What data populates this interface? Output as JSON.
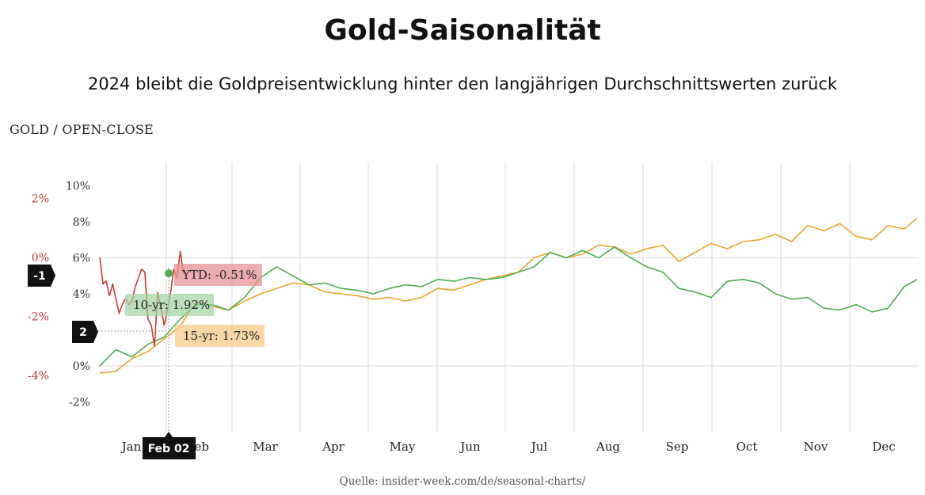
{
  "header": {
    "title": "Gold-Saisonalität",
    "subtitle": "2024 bleibt die Goldpreisentwicklung hinter den langjährigen Durchschnittswerten zurück",
    "chart_label": "GOLD / OPEN-CLOSE"
  },
  "footer": {
    "source": "Quelle: insider-week.com/de/seasonal-charts/"
  },
  "colors": {
    "ytd": "#d03a2f",
    "ten_yr": "#4caf50",
    "fifteen_yr": "#f0a32a",
    "grid": "#dddddd"
  },
  "crosshair": {
    "date_label": "Feb 02",
    "left_axis_marker": "-1",
    "right_axis_marker": "2"
  },
  "chart_data": {
    "type": "line",
    "months": [
      "Jan",
      "Feb",
      "Mar",
      "Apr",
      "May",
      "Jun",
      "Jul",
      "Aug",
      "Sep",
      "Oct",
      "Nov",
      "Dec"
    ],
    "x_unit": "trading day of year",
    "right_axis": {
      "ticks": [
        "10%",
        "8%",
        "6%",
        "4%",
        "2%",
        "0%",
        "-2%"
      ],
      "ylim": [
        -3.5,
        11
      ]
    },
    "left_axis": {
      "ticks": [
        "2%",
        "0%",
        "-2%",
        "-4%"
      ],
      "ylim": [
        -5.3,
        3.2
      ]
    },
    "series": [
      {
        "key": "ytd",
        "axis": "left",
        "label": "YTD: -0.51%",
        "points": [
          [
            0,
            0
          ],
          [
            1,
            -0.9
          ],
          [
            2,
            -0.8
          ],
          [
            3,
            -1.3
          ],
          [
            4,
            -0.9
          ],
          [
            5,
            -1.4
          ],
          [
            6,
            -1.9
          ],
          [
            7,
            -1.6
          ],
          [
            8,
            -1.4
          ],
          [
            9,
            -1.6
          ],
          [
            10,
            -1.5
          ],
          [
            11,
            -1.0
          ],
          [
            12,
            -0.7
          ],
          [
            13,
            -0.4
          ],
          [
            14,
            -0.5
          ],
          [
            15,
            -2.1
          ],
          [
            16,
            -2.3
          ],
          [
            17,
            -3.0
          ],
          [
            18,
            -1.2
          ],
          [
            19,
            -1.7
          ],
          [
            20,
            -2.3
          ],
          [
            21,
            -1.8
          ],
          [
            22,
            -1.2
          ],
          [
            23,
            -0.4
          ],
          [
            24,
            -0.7
          ],
          [
            25,
            0.2
          ],
          [
            26,
            -0.5
          ],
          [
            27,
            -0.51
          ]
        ]
      },
      {
        "key": "ten_yr",
        "axis": "right",
        "label": "10-yr: 1.92%",
        "points": [
          [
            0,
            0
          ],
          [
            5,
            0.9
          ],
          [
            10,
            0.5
          ],
          [
            15,
            1.2
          ],
          [
            20,
            1.6
          ],
          [
            25,
            2.6
          ],
          [
            30,
            3.4
          ],
          [
            35,
            3.4
          ],
          [
            40,
            3.1
          ],
          [
            45,
            3.8
          ],
          [
            50,
            4.9
          ],
          [
            55,
            5.5
          ],
          [
            60,
            5.0
          ],
          [
            65,
            4.5
          ],
          [
            70,
            4.6
          ],
          [
            75,
            4.3
          ],
          [
            80,
            4.2
          ],
          [
            85,
            4.0
          ],
          [
            90,
            4.3
          ],
          [
            95,
            4.5
          ],
          [
            100,
            4.4
          ],
          [
            105,
            4.8
          ],
          [
            110,
            4.7
          ],
          [
            115,
            4.9
          ],
          [
            120,
            4.8
          ],
          [
            125,
            4.9
          ],
          [
            130,
            5.2
          ],
          [
            135,
            5.5
          ],
          [
            140,
            6.3
          ],
          [
            145,
            6.0
          ],
          [
            150,
            6.4
          ],
          [
            155,
            6.0
          ],
          [
            160,
            6.6
          ],
          [
            165,
            6.0
          ],
          [
            170,
            5.5
          ],
          [
            175,
            5.2
          ],
          [
            180,
            4.3
          ],
          [
            185,
            4.1
          ],
          [
            190,
            3.8
          ],
          [
            195,
            4.7
          ],
          [
            200,
            4.8
          ],
          [
            205,
            4.6
          ],
          [
            210,
            4.0
          ],
          [
            215,
            3.7
          ],
          [
            220,
            3.8
          ],
          [
            225,
            3.2
          ],
          [
            230,
            3.1
          ],
          [
            235,
            3.4
          ],
          [
            240,
            3.0
          ],
          [
            245,
            3.2
          ],
          [
            250,
            4.4
          ],
          [
            254,
            4.8
          ]
        ]
      },
      {
        "key": "fifteen_yr",
        "axis": "right",
        "label": "15-yr: 1.73%",
        "points": [
          [
            0,
            -0.4
          ],
          [
            5,
            -0.3
          ],
          [
            10,
            0.4
          ],
          [
            15,
            0.8
          ],
          [
            20,
            1.5
          ],
          [
            25,
            2.2
          ],
          [
            30,
            3.6
          ],
          [
            35,
            3.3
          ],
          [
            40,
            3.1
          ],
          [
            45,
            3.6
          ],
          [
            50,
            4.0
          ],
          [
            55,
            4.3
          ],
          [
            60,
            4.6
          ],
          [
            65,
            4.5
          ],
          [
            70,
            4.1
          ],
          [
            75,
            4.0
          ],
          [
            80,
            3.9
          ],
          [
            85,
            3.7
          ],
          [
            90,
            3.8
          ],
          [
            95,
            3.6
          ],
          [
            100,
            3.8
          ],
          [
            105,
            4.3
          ],
          [
            110,
            4.2
          ],
          [
            115,
            4.5
          ],
          [
            120,
            4.8
          ],
          [
            125,
            5.0
          ],
          [
            130,
            5.2
          ],
          [
            135,
            6.0
          ],
          [
            140,
            6.3
          ],
          [
            145,
            6.0
          ],
          [
            150,
            6.2
          ],
          [
            155,
            6.7
          ],
          [
            160,
            6.6
          ],
          [
            165,
            6.2
          ],
          [
            170,
            6.5
          ],
          [
            175,
            6.7
          ],
          [
            180,
            5.8
          ],
          [
            185,
            6.3
          ],
          [
            190,
            6.8
          ],
          [
            195,
            6.5
          ],
          [
            200,
            6.9
          ],
          [
            205,
            7.0
          ],
          [
            210,
            7.3
          ],
          [
            215,
            6.9
          ],
          [
            220,
            7.8
          ],
          [
            225,
            7.5
          ],
          [
            230,
            7.9
          ],
          [
            235,
            7.2
          ],
          [
            240,
            7.0
          ],
          [
            245,
            7.8
          ],
          [
            250,
            7.6
          ],
          [
            254,
            8.2
          ]
        ]
      }
    ]
  }
}
